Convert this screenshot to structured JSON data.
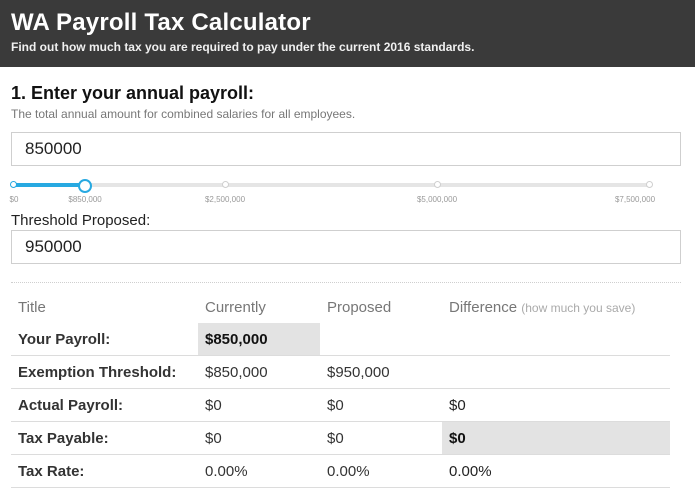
{
  "header": {
    "title": "WA Payroll Tax Calculator",
    "subtitle": "Find out how much tax you are required to pay under the current 2016 standards."
  },
  "section1": {
    "title": "1. Enter your annual payroll:",
    "description": "The total annual amount for combined salaries for all employees.",
    "payroll_value": "850000"
  },
  "slider": {
    "value": 850000,
    "min": 0,
    "max": 7500000,
    "tick_labels": [
      "$0",
      "$850,000",
      "$2,500,000",
      "$5,000,000",
      "$7,500,000"
    ],
    "accent_color": "#27a9e1"
  },
  "threshold": {
    "label": "Threshold Proposed:",
    "value": "950000"
  },
  "table": {
    "headers": {
      "title": "Title",
      "currently": "Currently",
      "proposed": "Proposed",
      "difference": "Difference",
      "difference_hint": "(how much you save)"
    },
    "rows": [
      {
        "label": "Your Payroll:",
        "currently": "$850,000",
        "proposed": "",
        "difference": ""
      },
      {
        "label": "Exemption Threshold:",
        "currently": "$850,000",
        "proposed": "$950,000",
        "difference": ""
      },
      {
        "label": "Actual Payroll:",
        "currently": "$0",
        "proposed": "$0",
        "difference": "$0"
      },
      {
        "label": "Tax Payable:",
        "currently": "$0",
        "proposed": "$0",
        "difference": "$0"
      },
      {
        "label": "Tax Rate:",
        "currently": "0.00%",
        "proposed": "0.00%",
        "difference": "0.00%"
      }
    ]
  }
}
